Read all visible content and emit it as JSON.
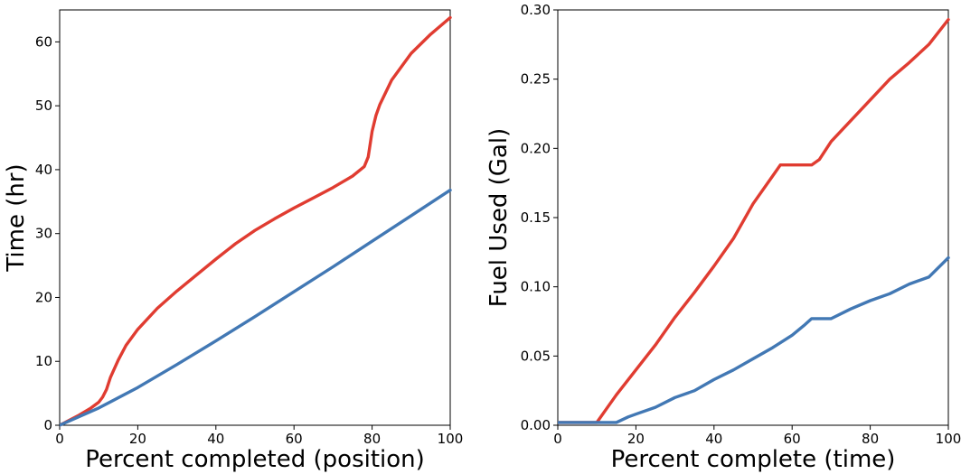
{
  "colors": {
    "red": "#e03c31",
    "blue": "#4278b4"
  },
  "chart_data": [
    {
      "type": "line",
      "title": "",
      "xlabel": "Percent completed (position)",
      "ylabel": "Time (hr)",
      "xlim": [
        0,
        100
      ],
      "ylim": [
        0,
        65
      ],
      "xticks": [
        0,
        20,
        40,
        60,
        80,
        100
      ],
      "yticks": [
        0,
        10,
        20,
        30,
        40,
        50,
        60
      ],
      "grid": false,
      "legend": "none",
      "series": [
        {
          "color": "#e03c31",
          "x": [
            0,
            5,
            8,
            10,
            11,
            12,
            13,
            15,
            17,
            20,
            25,
            30,
            35,
            40,
            45,
            50,
            55,
            60,
            65,
            70,
            75,
            78,
            79,
            80,
            81,
            82,
            85,
            90,
            95,
            100
          ],
          "y": [
            0,
            1.6,
            2.7,
            3.6,
            4.4,
            5.6,
            7.5,
            10.2,
            12.5,
            15.0,
            18.3,
            21.0,
            23.5,
            26.0,
            28.4,
            30.5,
            32.3,
            34.0,
            35.6,
            37.2,
            39.0,
            40.5,
            42.0,
            46.0,
            48.5,
            50.2,
            54.0,
            58.2,
            61.2,
            63.8
          ]
        },
        {
          "color": "#4278b4",
          "x": [
            0,
            10,
            20,
            30,
            40,
            50,
            60,
            70,
            80,
            90,
            100
          ],
          "y": [
            0,
            2.7,
            5.9,
            9.5,
            13.2,
            17.0,
            20.9,
            24.8,
            28.8,
            32.8,
            36.8
          ]
        }
      ]
    },
    {
      "type": "line",
      "title": "",
      "xlabel": "Percent complete (time)",
      "ylabel": "Fuel Used (Gal)",
      "xlim": [
        0,
        100
      ],
      "ylim": [
        0,
        0.3
      ],
      "xticks": [
        0,
        20,
        40,
        60,
        80,
        100
      ],
      "yticks": [
        0.0,
        0.05,
        0.1,
        0.15,
        0.2,
        0.25,
        0.3
      ],
      "ytick_labels": [
        "0.00",
        "0.05",
        "0.10",
        "0.15",
        "0.20",
        "0.25",
        "0.30"
      ],
      "grid": false,
      "legend": "none",
      "series": [
        {
          "color": "#e03c31",
          "x": [
            0,
            10,
            12,
            15,
            20,
            25,
            30,
            35,
            40,
            45,
            50,
            55,
            57,
            60,
            65,
            67,
            70,
            75,
            80,
            85,
            90,
            95,
            100
          ],
          "y": [
            0.002,
            0.002,
            0.01,
            0.022,
            0.04,
            0.058,
            0.078,
            0.096,
            0.115,
            0.135,
            0.16,
            0.18,
            0.188,
            0.188,
            0.188,
            0.192,
            0.205,
            0.22,
            0.235,
            0.25,
            0.262,
            0.275,
            0.293
          ]
        },
        {
          "color": "#4278b4",
          "x": [
            0,
            15,
            18,
            20,
            25,
            30,
            35,
            40,
            45,
            50,
            55,
            60,
            63,
            65,
            70,
            75,
            80,
            85,
            90,
            95,
            100
          ],
          "y": [
            0.002,
            0.002,
            0.006,
            0.008,
            0.013,
            0.02,
            0.025,
            0.033,
            0.04,
            0.048,
            0.056,
            0.065,
            0.072,
            0.077,
            0.077,
            0.084,
            0.09,
            0.095,
            0.102,
            0.107,
            0.121
          ]
        }
      ]
    }
  ]
}
